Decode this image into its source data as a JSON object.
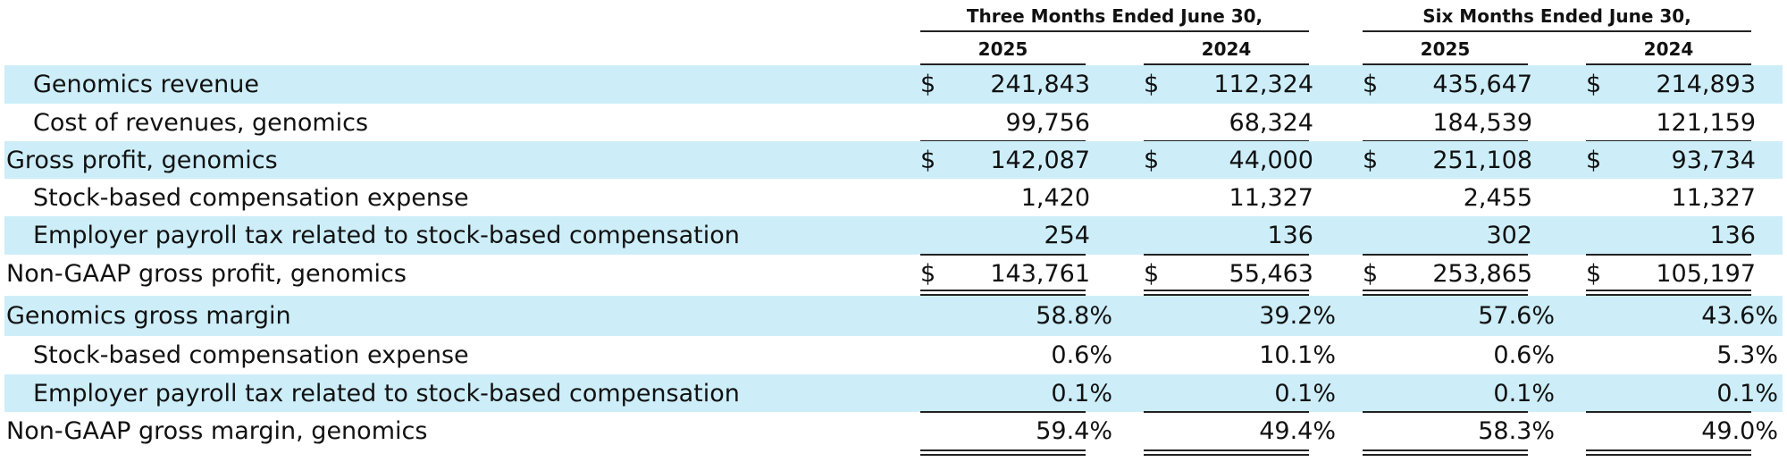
{
  "header": {
    "three_months": "Three Months Ended June 30,",
    "six_months": "Six Months Ended June 30,",
    "years": [
      "2025",
      "2024",
      "2025",
      "2024"
    ]
  },
  "currency_symbol": "$",
  "rows": [
    {
      "label": "Genomics revenue",
      "values": [
        "241,843",
        "112,324",
        "435,647",
        "214,893"
      ]
    },
    {
      "label": "Cost of revenues, genomics",
      "values": [
        "99,756",
        "68,324",
        "184,539",
        "121,159"
      ]
    },
    {
      "label": "Gross profit, genomics",
      "values": [
        "142,087",
        "44,000",
        "251,108",
        "93,734"
      ]
    },
    {
      "label": "Stock-based compensation expense",
      "values": [
        "1,420",
        "11,327",
        "2,455",
        "11,327"
      ]
    },
    {
      "label": "Employer payroll tax related to stock-based compensation",
      "values": [
        "254",
        "136",
        "302",
        "136"
      ]
    },
    {
      "label": "Non-GAAP gross profit, genomics",
      "values": [
        "143,761",
        "55,463",
        "253,865",
        "105,197"
      ]
    },
    {
      "label": "Genomics gross margin",
      "values": [
        "58.8%",
        "39.2%",
        "57.6%",
        "43.6%"
      ]
    },
    {
      "label": "Stock-based compensation expense",
      "values": [
        "0.6%",
        "10.1%",
        "0.6%",
        "5.3%"
      ]
    },
    {
      "label": "Employer payroll tax related to stock-based compensation",
      "values": [
        "0.1%",
        "0.1%",
        "0.1%",
        "0.1%"
      ]
    },
    {
      "label": "Non-GAAP gross margin, genomics",
      "values": [
        "59.4%",
        "49.4%",
        "58.3%",
        "49.0%"
      ]
    }
  ]
}
